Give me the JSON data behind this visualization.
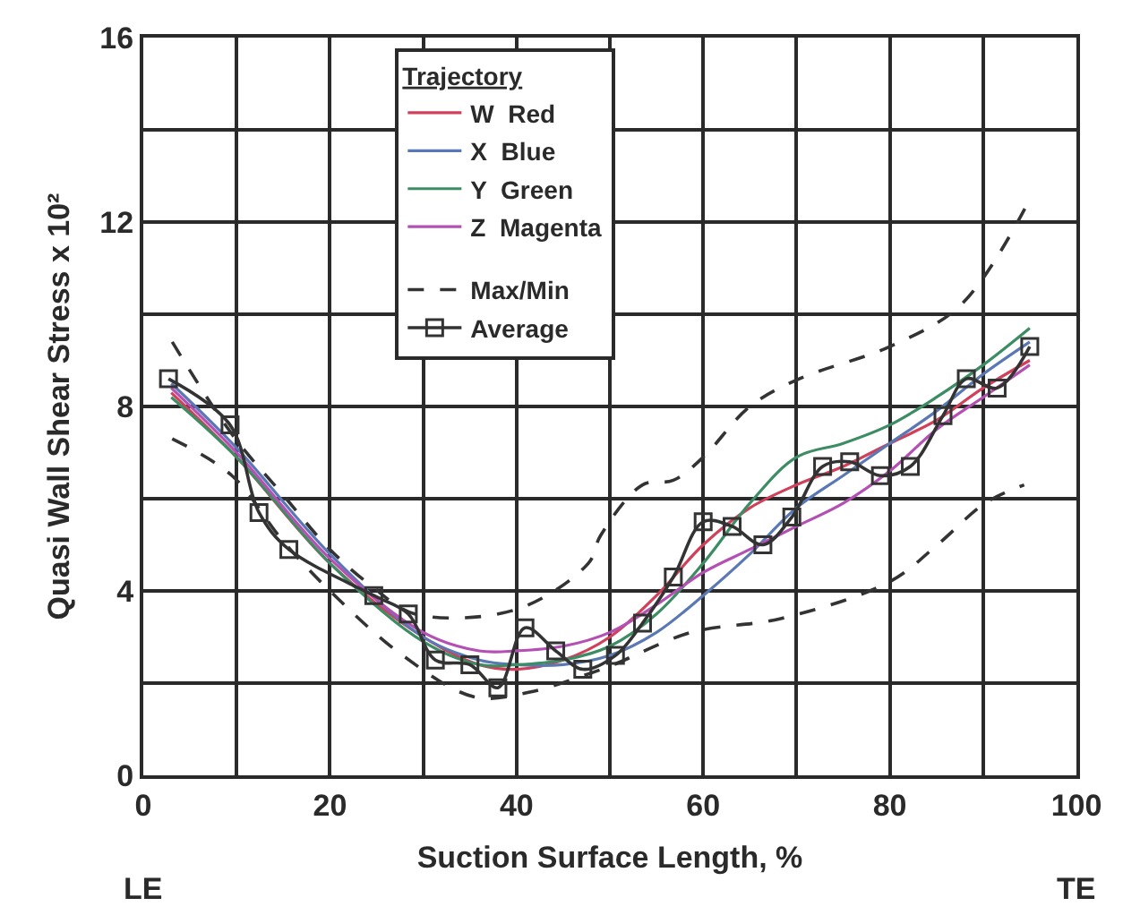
{
  "chart_data": {
    "type": "line",
    "xlabel": "Suction Surface Length, %",
    "ylabel": "Quasi Wall Shear Stress x 10²",
    "xlim": [
      0,
      100
    ],
    "xticks": [
      0,
      20,
      40,
      60,
      80,
      100,
      {
        "value": 10,
        "label": null
      },
      {
        "value": 30,
        "label": null
      },
      {
        "value": 50,
        "label": null
      },
      {
        "value": 70,
        "label": null
      },
      {
        "value": 90,
        "label": null
      }
    ],
    "ylim": [
      0,
      16
    ],
    "yticks": [
      0,
      4,
      8,
      12,
      16,
      {
        "value": 2,
        "label": null
      },
      {
        "value": 6,
        "label": null
      },
      {
        "value": 10,
        "label": null
      },
      {
        "value": 14,
        "label": null
      }
    ],
    "grid": true,
    "legend": "top center",
    "legend_title": "Trajectory",
    "annotations": [
      "LE",
      "TE"
    ],
    "series": [
      {
        "name": "W  Red",
        "color": "#d0405a",
        "marker": "none",
        "line_style": "solid",
        "x": [
          3,
          10,
          20,
          30,
          36,
          40,
          45,
          50,
          55,
          60,
          65,
          70,
          75,
          80,
          85,
          90,
          95
        ],
        "values": [
          8.3,
          6.9,
          4.6,
          3.0,
          2.4,
          2.3,
          2.5,
          3.0,
          3.9,
          5.0,
          5.8,
          6.3,
          6.7,
          7.2,
          7.7,
          8.4,
          9.0
        ]
      },
      {
        "name": "X  Blue",
        "color": "#5a78b4",
        "marker": "none",
        "line_style": "solid",
        "x": [
          3,
          10,
          20,
          30,
          36,
          40,
          45,
          50,
          55,
          60,
          65,
          70,
          75,
          80,
          85,
          90,
          95
        ],
        "values": [
          8.5,
          7.1,
          4.8,
          3.0,
          2.5,
          2.4,
          2.4,
          2.6,
          3.1,
          3.9,
          4.8,
          5.8,
          6.5,
          7.2,
          7.9,
          8.7,
          9.4
        ]
      },
      {
        "name": "Y  Green",
        "color": "#3c8c64",
        "marker": "none",
        "line_style": "solid",
        "x": [
          3,
          10,
          20,
          30,
          36,
          40,
          45,
          50,
          55,
          60,
          65,
          70,
          75,
          80,
          85,
          90,
          95
        ],
        "values": [
          8.2,
          6.9,
          4.6,
          2.9,
          2.4,
          2.4,
          2.5,
          2.8,
          3.5,
          4.6,
          5.9,
          6.9,
          7.2,
          7.6,
          8.2,
          8.9,
          9.7
        ]
      },
      {
        "name": "Z  Magenta",
        "color": "#b450b4",
        "marker": "none",
        "line_style": "solid",
        "x": [
          3,
          10,
          20,
          30,
          36,
          40,
          45,
          50,
          55,
          60,
          65,
          70,
          75,
          80,
          85,
          90,
          95
        ],
        "values": [
          8.4,
          7.0,
          4.7,
          3.1,
          2.7,
          2.7,
          2.8,
          3.1,
          3.7,
          4.4,
          4.9,
          5.4,
          5.9,
          6.6,
          7.5,
          8.2,
          8.9
        ]
      },
      {
        "name": "Max/Min",
        "color": "#333333",
        "marker": "none",
        "line_style": "dashed",
        "x": [
          3.1,
          9.5,
          14.9,
          20,
          24.5,
          29.1,
          40,
          47.7,
          49,
          53.5,
          56.8,
          60,
          65,
          70.3,
          80,
          87.6,
          94.5
        ],
        "values": [
          9.4,
          7.4,
          6.1,
          4.9,
          4.1,
          3.5,
          3.6,
          4.6,
          5.2,
          6.3,
          6.4,
          6.9,
          8.0,
          8.6,
          9.3,
          10.2,
          12.3
        ]
      },
      {
        "color": "#333333",
        "marker": "none",
        "line_style": "dashed",
        "x": [
          3.1,
          9.5,
          14.9,
          20,
          27.8,
          35.5,
          41.3,
          47.7,
          50.4,
          58.7,
          68.3,
          80,
          85.1,
          90.2,
          94.4
        ],
        "values": [
          7.3,
          6.5,
          5.1,
          4.0,
          2.6,
          1.7,
          1.8,
          2.2,
          2.4,
          3.1,
          3.4,
          4.2,
          5.0,
          5.9,
          6.3
        ]
      },
      {
        "name": "Average",
        "color": "#333333",
        "marker": "square",
        "line_style": "solid",
        "x": [
          2.7,
          9.3,
          12.4,
          15.6,
          24.7,
          28.4,
          31.3,
          35,
          38,
          40.9,
          44.2,
          47.1,
          50.6,
          53.5,
          56.8,
          60,
          63.1,
          66.4,
          69.5,
          72.8,
          75.7,
          79,
          82.2,
          85.7,
          88.2,
          91.5,
          95
        ],
        "values": [
          8.6,
          7.6,
          5.7,
          4.9,
          3.9,
          3.5,
          2.5,
          2.4,
          1.9,
          3.2,
          2.7,
          2.3,
          2.6,
          3.3,
          4.3,
          5.5,
          5.4,
          5.0,
          5.6,
          6.7,
          6.8,
          6.5,
          6.7,
          7.8,
          8.6,
          8.4,
          9.3
        ]
      }
    ]
  }
}
